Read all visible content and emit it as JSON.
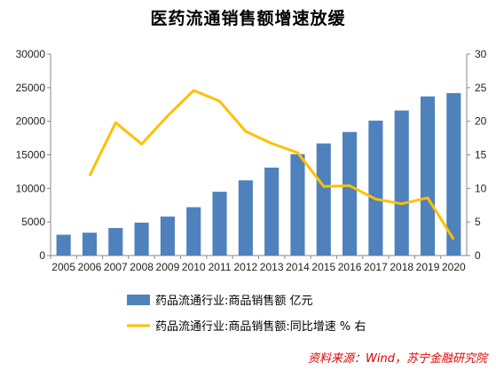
{
  "chart_data": {
    "type": "bar",
    "title": "医药流通销售额增速放缓",
    "categories": [
      "2005",
      "2006",
      "2007",
      "2008",
      "2009",
      "2010",
      "2011",
      "2012",
      "2013",
      "2014",
      "2015",
      "2016",
      "2017",
      "2018",
      "2019",
      "2020"
    ],
    "series": [
      {
        "name": "药品流通行业:商品销售额 亿元",
        "type": "bar",
        "axis": "left",
        "color": "#4f81bd",
        "values": [
          3100,
          3400,
          4100,
          4900,
          5800,
          7200,
          9500,
          11200,
          13100,
          15100,
          16700,
          18400,
          20100,
          21600,
          23700,
          24200
        ]
      },
      {
        "name": "药品流通行业:商品销售额:同比增速 % 右",
        "type": "line",
        "axis": "right",
        "color": "#ffc000",
        "values": [
          null,
          11.9,
          19.8,
          16.6,
          20.8,
          24.6,
          23.0,
          18.5,
          16.7,
          15.3,
          10.3,
          10.4,
          8.4,
          7.7,
          8.6,
          2.4
        ]
      }
    ],
    "yleft_ticks": [
      "0",
      "5000",
      "10000",
      "15000",
      "20000",
      "25000",
      "30000"
    ],
    "yright_ticks": [
      "0",
      "5",
      "10",
      "15",
      "20",
      "25",
      "30"
    ],
    "yleft_lim": [
      0,
      30000
    ],
    "yright_lim": [
      0,
      30
    ],
    "grid": false,
    "legend_position": "bottom",
    "source": "资料来源：Wind，苏宁金融研究院"
  }
}
